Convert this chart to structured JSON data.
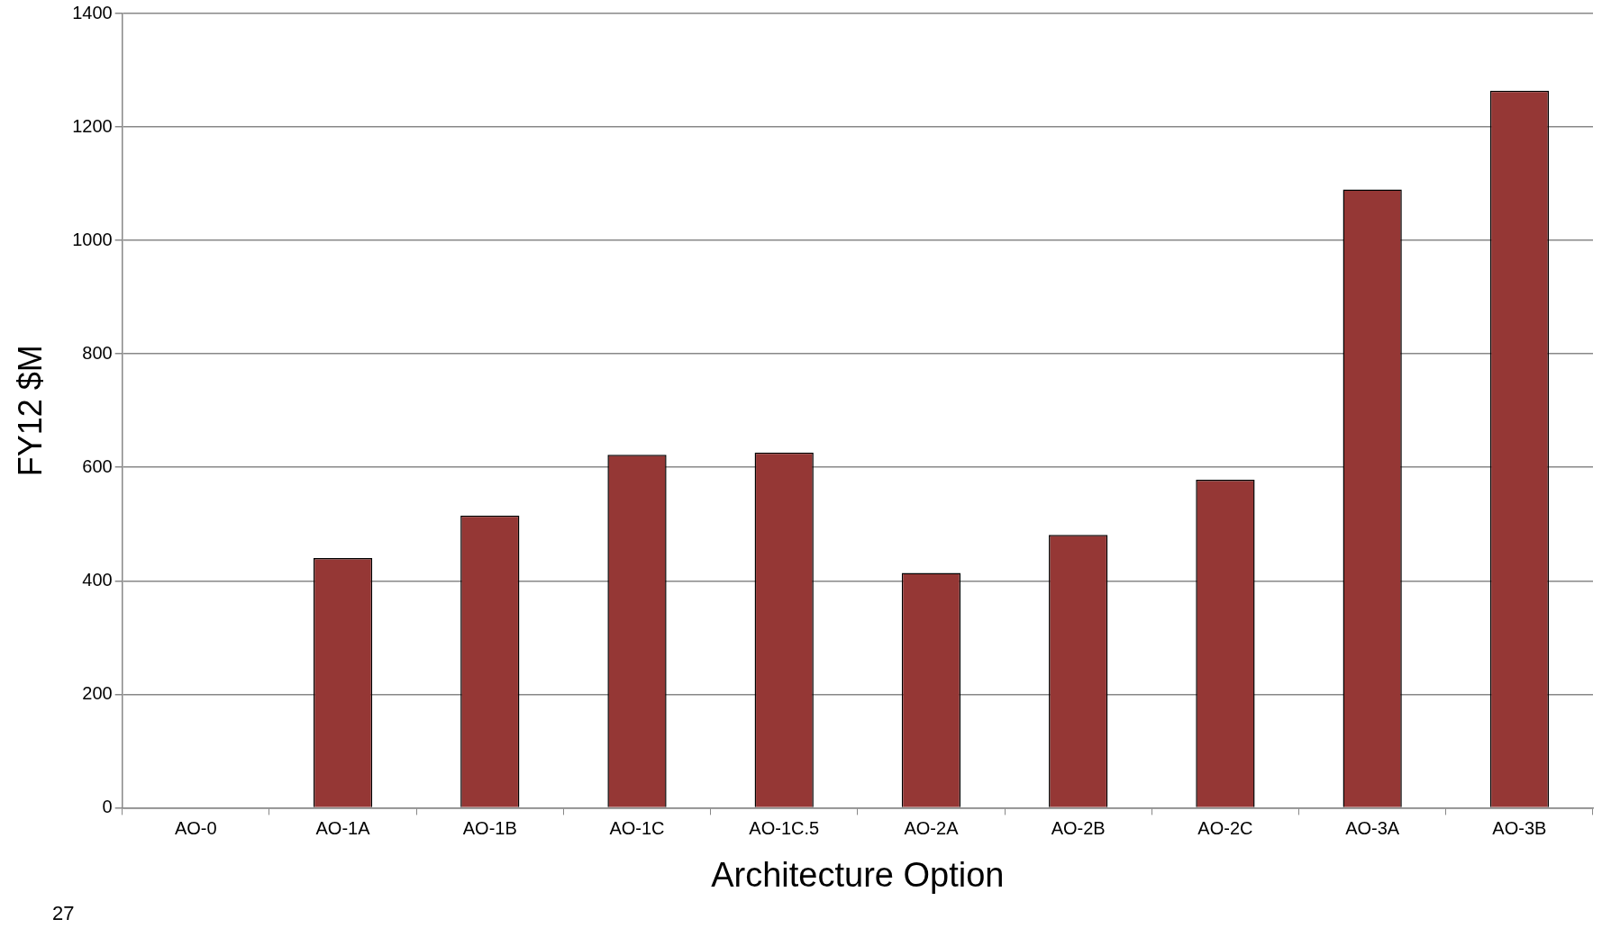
{
  "chart_data": {
    "type": "bar",
    "categories": [
      "AO-0",
      "AO-1A",
      "AO-1B",
      "AO-1C",
      "AO-1C.5",
      "AO-2A",
      "AO-2B",
      "AO-2C",
      "AO-3A",
      "AO-3B"
    ],
    "values": [
      0,
      440,
      515,
      622,
      626,
      414,
      481,
      578,
      1090,
      1264
    ],
    "color": "#953735",
    "xlabel": "Architecture Option",
    "ylabel": "FY12 $M",
    "ylim": [
      0,
      1400
    ],
    "yticks": [
      0,
      200,
      400,
      600,
      800,
      1000,
      1200,
      1400
    ],
    "grid": "y",
    "legend": false,
    "annotations": [
      "27"
    ]
  }
}
